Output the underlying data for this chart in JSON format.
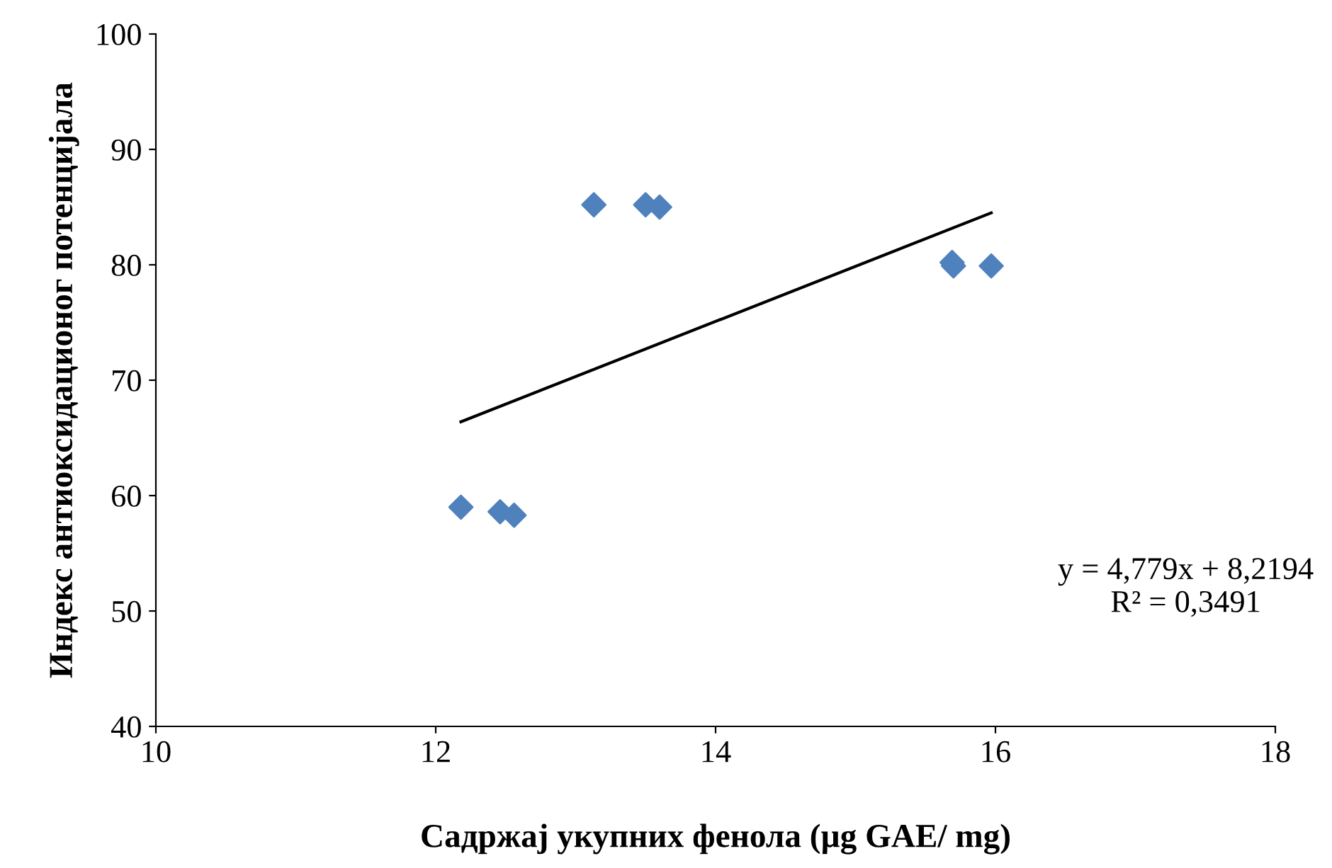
{
  "chart_data": {
    "type": "scatter",
    "xlabel": "Садржај укупних фенола (µg GAE/ mg)",
    "ylabel": "Индекс антиоксидационог потенцијала",
    "series": [
      {
        "color": "#4f81bd",
        "marker": "diamond",
        "x": [
          12.18,
          12.46,
          12.56,
          13.13,
          13.5,
          13.6,
          15.69,
          15.7,
          15.97
        ],
        "values": [
          59.0,
          58.6,
          58.3,
          85.2,
          85.2,
          85.0,
          80.2,
          79.9,
          79.9
        ]
      },
      {
        "type": "line",
        "color": "#000000",
        "marker": "none",
        "line_style": "solid",
        "x": [
          12.18,
          15.97
        ],
        "values": [
          66.4,
          84.5
        ]
      }
    ],
    "annotations": [
      "y = 4,779x + 8,2194\nR² = 0,3491"
    ],
    "xlim": [
      10,
      18
    ],
    "xticks": [
      10,
      12,
      14,
      16,
      18
    ],
    "ylim": [
      40,
      100
    ],
    "yticks": [
      40,
      50,
      60,
      70,
      80,
      90,
      100
    ],
    "grid": false,
    "legend": false
  }
}
